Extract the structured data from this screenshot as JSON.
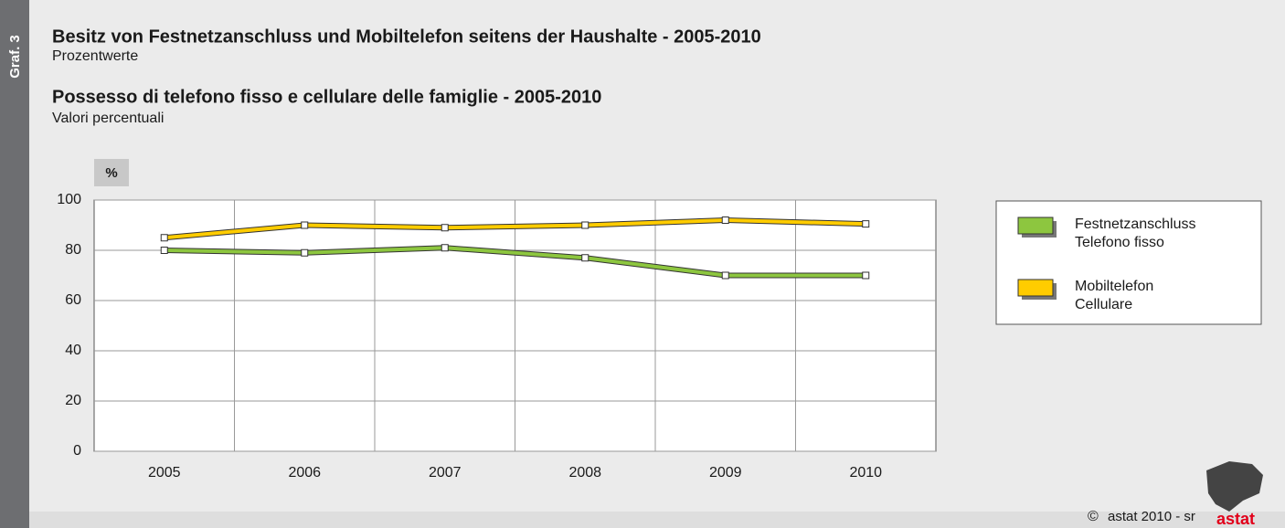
{
  "chart_data": {
    "type": "line",
    "graph_label": "Graf. 3",
    "title": "Besitz von Festnetzanschluss und Mobiltelefon seitens der Haushalte - 2005-2010",
    "subtitle": "Prozentwerte",
    "title_2": "Possesso di telefono fisso e cellulare delle famiglie - 2005-2010",
    "subtitle_2": "Valori percentuali",
    "y_unit": "%",
    "categories": [
      "2005",
      "2006",
      "2007",
      "2008",
      "2009",
      "2010"
    ],
    "series": [
      {
        "name": [
          "Festnetzanschluss",
          "Telefono fisso"
        ],
        "color": "#8dc63f",
        "values": [
          80,
          79,
          81,
          77,
          70,
          70
        ]
      },
      {
        "name": [
          "Mobiltelefon",
          "Cellulare"
        ],
        "color": "#ffcc00",
        "values": [
          85,
          90,
          89,
          90,
          92,
          90.5
        ]
      }
    ],
    "ylim": [
      0,
      100
    ],
    "yticks": [
      0,
      20,
      40,
      60,
      80,
      100
    ],
    "grid": true,
    "legend": "right",
    "copyright": "©",
    "footer": "astat 2010 - sr",
    "logo": "astat"
  }
}
